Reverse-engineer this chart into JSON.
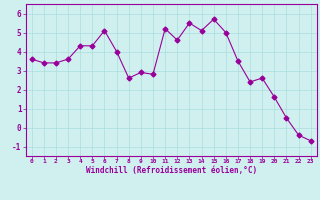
{
  "x": [
    0,
    1,
    2,
    3,
    4,
    5,
    6,
    7,
    8,
    9,
    10,
    11,
    12,
    13,
    14,
    15,
    16,
    17,
    18,
    19,
    20,
    21,
    22,
    23
  ],
  "y": [
    3.6,
    3.4,
    3.4,
    3.6,
    4.3,
    4.3,
    5.1,
    4.0,
    2.6,
    2.9,
    2.8,
    5.2,
    4.6,
    5.5,
    5.1,
    5.7,
    5.0,
    3.5,
    2.4,
    2.6,
    1.6,
    0.5,
    -0.4,
    -0.7
  ],
  "line_color": "#990099",
  "marker": "D",
  "marker_size": 2.5,
  "bg_color": "#d0f0f0",
  "grid_color": "#aadddd",
  "xlabel": "Windchill (Refroidissement éolien,°C)",
  "xlabel_color": "#990099",
  "tick_color": "#990099",
  "ylim": [
    -1.5,
    6.5
  ],
  "xlim": [
    -0.5,
    23.5
  ],
  "yticks": [
    -1,
    0,
    1,
    2,
    3,
    4,
    5,
    6
  ],
  "xtick_labels": [
    "0",
    "1",
    "2",
    "3",
    "4",
    "5",
    "6",
    "7",
    "8",
    "9",
    "10",
    "11",
    "12",
    "13",
    "14",
    "15",
    "16",
    "17",
    "18",
    "19",
    "20",
    "21",
    "22",
    "23"
  ]
}
